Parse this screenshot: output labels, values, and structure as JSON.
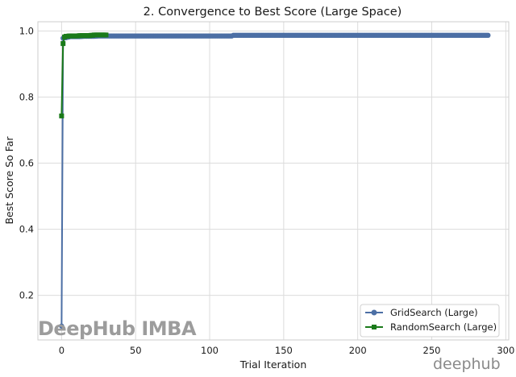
{
  "chart_data": {
    "type": "line",
    "title": "2. Convergence to Best Score (Large Space)",
    "xlabel": "Trial Iteration",
    "ylabel": "Best Score So Far",
    "xlim": [
      -16,
      302
    ],
    "ylim": [
      0.065,
      1.028
    ],
    "xticks": [
      0,
      50,
      100,
      150,
      200,
      250,
      300
    ],
    "yticks": [
      0.2,
      0.4,
      0.6,
      0.8,
      1.0
    ],
    "xtick_labels": [
      "0",
      "50",
      "100",
      "150",
      "200",
      "250",
      "300"
    ],
    "ytick_labels": [
      "0.2",
      "0.4",
      "0.6",
      "0.8",
      "1.0"
    ],
    "grid": true,
    "legend_position": "bottom-right",
    "series": [
      {
        "name": "GridSearch (Large)",
        "color": "#4c6fa5",
        "marker": "circle",
        "x": [
          0,
          1,
          2,
          3,
          4,
          5,
          6,
          8,
          10,
          12,
          15,
          18,
          20,
          22,
          25,
          28,
          30,
          50,
          80,
          100,
          115,
          116,
          150,
          200,
          250,
          288
        ],
        "y": [
          0.107,
          0.978,
          0.979,
          0.98,
          0.981,
          0.982,
          0.983,
          0.983,
          0.983,
          0.983,
          0.984,
          0.984,
          0.984,
          0.984,
          0.985,
          0.985,
          0.985,
          0.985,
          0.985,
          0.985,
          0.985,
          0.987,
          0.987,
          0.987,
          0.987,
          0.987
        ]
      },
      {
        "name": "RandomSearch (Large)",
        "color": "#1a7a1a",
        "marker": "square",
        "x": [
          0,
          1,
          2,
          3,
          5,
          8,
          10,
          12,
          15,
          18,
          20,
          22,
          25,
          28,
          30
        ],
        "y": [
          0.743,
          0.962,
          0.982,
          0.984,
          0.985,
          0.985,
          0.985,
          0.986,
          0.986,
          0.986,
          0.987,
          0.988,
          0.988,
          0.988,
          0.988
        ]
      }
    ]
  },
  "watermarks": {
    "main": "DeepHub IMBA",
    "corner": "deephub"
  }
}
